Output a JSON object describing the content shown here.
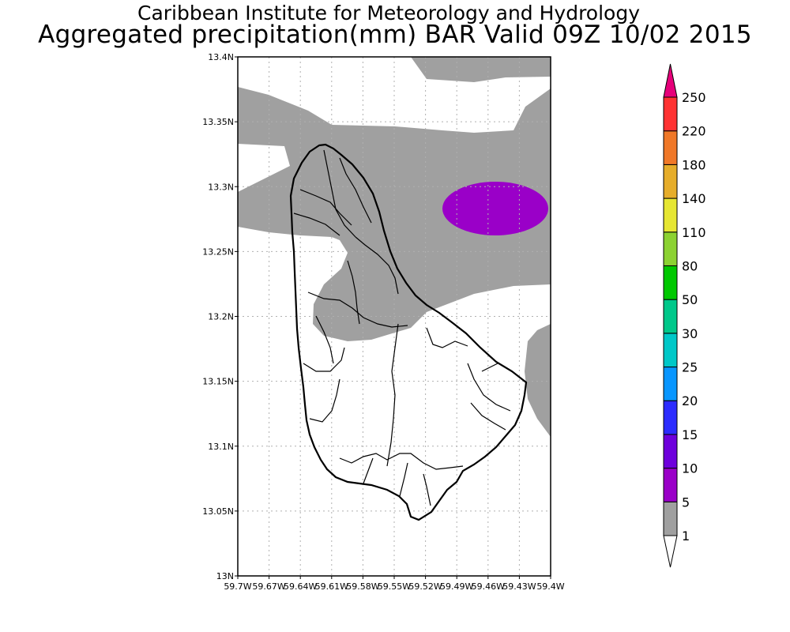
{
  "title": {
    "line1": "Caribbean Institute for Meteorology and Hydrology",
    "line2": "Aggregated precipitation(mm) BAR Valid 09Z 10/02 2015"
  },
  "axes": {
    "lat_ticks": [
      "13N",
      "13.05N",
      "13.1N",
      "13.15N",
      "13.2N",
      "13.25N",
      "13.3N",
      "13.35N",
      "13.4N"
    ],
    "lon_ticks": [
      "59.7W",
      "59.67W",
      "59.64W",
      "59.61W",
      "59.58W",
      "59.55W",
      "59.52W",
      "59.49W",
      "59.46W",
      "59.43W",
      "59.4W"
    ]
  },
  "colorbar": {
    "levels": [
      "1",
      "5",
      "10",
      "15",
      "20",
      "25",
      "30",
      "50",
      "80",
      "110",
      "140",
      "180",
      "220",
      "250"
    ],
    "colors": [
      "#ffffff",
      "#a0a0a0",
      "#9a00c8",
      "#6e00dc",
      "#2c2cff",
      "#0896ff",
      "#00c8c8",
      "#00c88a",
      "#00c800",
      "#8cd232",
      "#e6e632",
      "#e6ad2a",
      "#f07828",
      "#ff3232",
      "#e6007a"
    ]
  },
  "map": {
    "island": "Barbados",
    "fill_colors": {
      "light_rain": "#a0a0a0",
      "moderate_rain": "#9a00c8"
    }
  }
}
